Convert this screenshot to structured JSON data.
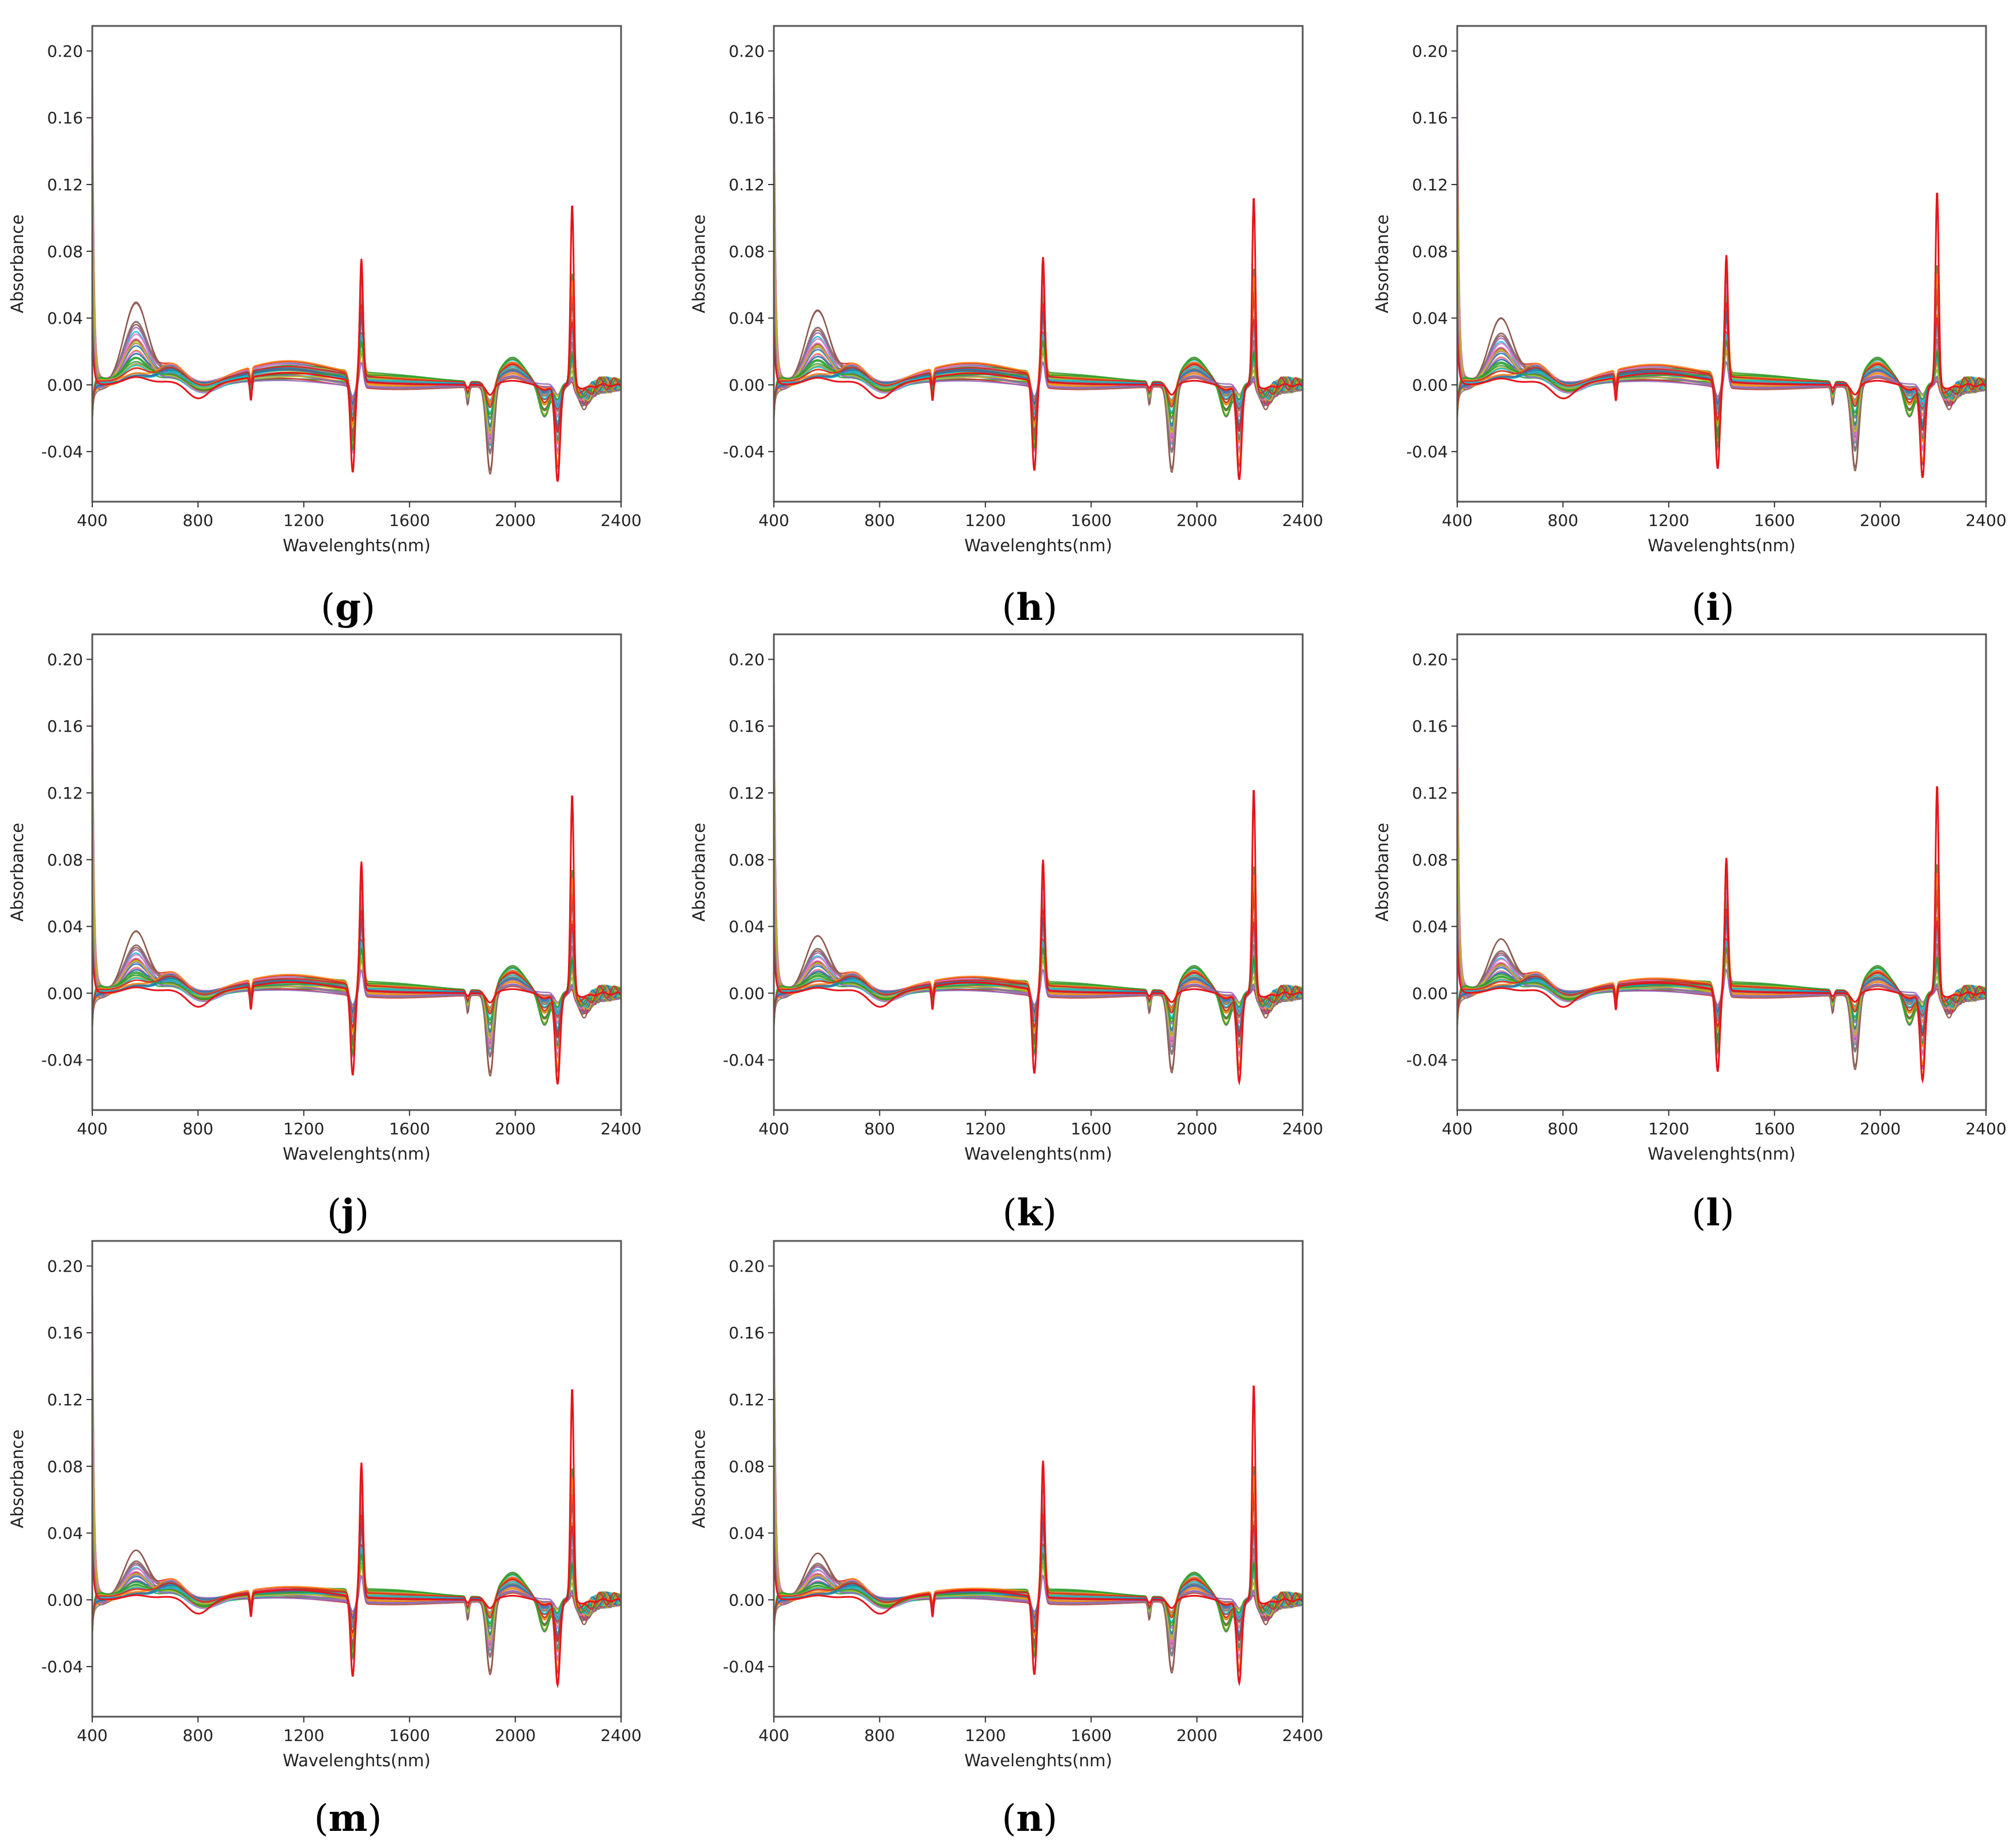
{
  "chart_data": [
    {
      "panel": "g",
      "type": "line",
      "xlabel": "Wavelenghts(nm)",
      "ylabel": "Absorbance",
      "xlim": [
        400,
        2400
      ],
      "ylim": [
        -0.07,
        0.215
      ],
      "xticks": [
        "400",
        "800",
        "1200",
        "1600",
        "2000",
        "2400"
      ],
      "yticks": [
        "-0.04",
        "0.00",
        "0.04",
        "0.08",
        "0.12",
        "0.16",
        "0.20"
      ],
      "grid": false,
      "legend": "none",
      "series_count_visible": "many",
      "features": {
        "peak_400": 0.2,
        "vis_peak_570": 0.053,
        "peak_1420": 0.063,
        "dip_1390": -0.048,
        "dip_1900": -0.057,
        "dip_2150": -0.05,
        "peak_2220": 0.097,
        "baseline_1200": 0.012
      }
    },
    {
      "panel": "h",
      "type": "line",
      "xlabel": "Wavelenghts(nm)",
      "ylabel": "Absorbance",
      "xlim": [
        400,
        2400
      ],
      "ylim": [
        -0.07,
        0.215
      ],
      "xticks": [
        "400",
        "800",
        "1200",
        "1600",
        "2000",
        "2400"
      ],
      "yticks": [
        "-0.04",
        "0.00",
        "0.04",
        "0.08",
        "0.12",
        "0.16",
        "0.20"
      ],
      "grid": false,
      "legend": "none",
      "series_count_visible": "many",
      "features": {
        "peak_400": 0.2,
        "vis_peak_570": 0.048,
        "peak_1420": 0.064,
        "dip_1390": -0.047,
        "dip_1900": -0.056,
        "dip_2150": -0.049,
        "peak_2220": 0.101,
        "baseline_1200": 0.011
      }
    },
    {
      "panel": "i",
      "type": "line",
      "xlabel": "Wavelenghts(nm)",
      "ylabel": "Absorbance",
      "xlim": [
        400,
        2400
      ],
      "ylim": [
        -0.07,
        0.215
      ],
      "xticks": [
        "400",
        "800",
        "1200",
        "1600",
        "2000",
        "2400"
      ],
      "yticks": [
        "-0.04",
        "0.00",
        "0.04",
        "0.08",
        "0.12",
        "0.16",
        "0.20"
      ],
      "grid": false,
      "legend": "none",
      "series_count_visible": "many",
      "features": {
        "peak_400": 0.2,
        "vis_peak_570": 0.043,
        "peak_1420": 0.065,
        "dip_1390": -0.046,
        "dip_1900": -0.055,
        "dip_2150": -0.048,
        "peak_2220": 0.104,
        "baseline_1200": 0.01
      }
    },
    {
      "panel": "j",
      "type": "line",
      "xlabel": "Wavelenghts(nm)",
      "ylabel": "Absorbance",
      "xlim": [
        400,
        2400
      ],
      "ylim": [
        -0.07,
        0.215
      ],
      "xticks": [
        "400",
        "800",
        "1200",
        "1600",
        "2000",
        "2400"
      ],
      "yticks": [
        "-0.04",
        "0.00",
        "0.04",
        "0.08",
        "0.12",
        "0.16",
        "0.20"
      ],
      "grid": false,
      "legend": "none",
      "series_count_visible": "many",
      "features": {
        "peak_400": 0.2,
        "vis_peak_570": 0.04,
        "peak_1420": 0.066,
        "dip_1390": -0.045,
        "dip_1900": -0.053,
        "dip_2150": -0.047,
        "peak_2220": 0.107,
        "baseline_1200": 0.009
      }
    },
    {
      "panel": "k",
      "type": "line",
      "xlabel": "Wavelenghts(nm)",
      "ylabel": "Absorbance",
      "xlim": [
        400,
        2400
      ],
      "ylim": [
        -0.07,
        0.215
      ],
      "xticks": [
        "400",
        "800",
        "1200",
        "1600",
        "2000",
        "2400"
      ],
      "yticks": [
        "-0.04",
        "0.00",
        "0.04",
        "0.08",
        "0.12",
        "0.16",
        "0.20"
      ],
      "grid": false,
      "legend": "none",
      "series_count_visible": "many",
      "features": {
        "peak_400": 0.2,
        "vis_peak_570": 0.037,
        "peak_1420": 0.067,
        "dip_1390": -0.044,
        "dip_1900": -0.051,
        "dip_2150": -0.046,
        "peak_2220": 0.11,
        "baseline_1200": 0.008
      }
    },
    {
      "panel": "l",
      "type": "line",
      "xlabel": "Wavelenghts(nm)",
      "ylabel": "Absorbance",
      "xlim": [
        400,
        2400
      ],
      "ylim": [
        -0.07,
        0.215
      ],
      "xticks": [
        "400",
        "800",
        "1200",
        "1600",
        "2000",
        "2400"
      ],
      "yticks": [
        "-0.04",
        "0.00",
        "0.04",
        "0.08",
        "0.12",
        "0.16",
        "0.20"
      ],
      "grid": false,
      "legend": "none",
      "series_count_visible": "many",
      "features": {
        "peak_400": 0.2,
        "vis_peak_570": 0.035,
        "peak_1420": 0.068,
        "dip_1390": -0.043,
        "dip_1900": -0.049,
        "dip_2150": -0.045,
        "peak_2220": 0.112,
        "baseline_1200": 0.007
      }
    },
    {
      "panel": "m",
      "type": "line",
      "xlabel": "Wavelenghts(nm)",
      "ylabel": "Absorbance",
      "xlim": [
        400,
        2400
      ],
      "ylim": [
        -0.07,
        0.215
      ],
      "xticks": [
        "400",
        "800",
        "1200",
        "1600",
        "2000",
        "2400"
      ],
      "yticks": [
        "-0.04",
        "0.00",
        "0.04",
        "0.08",
        "0.12",
        "0.16",
        "0.20"
      ],
      "grid": false,
      "legend": "none",
      "series_count_visible": "many",
      "features": {
        "peak_400": 0.2,
        "vis_peak_570": 0.032,
        "peak_1420": 0.069,
        "dip_1390": -0.042,
        "dip_1900": -0.048,
        "dip_2150": -0.044,
        "peak_2220": 0.114,
        "baseline_1200": 0.006
      }
    },
    {
      "panel": "n",
      "type": "line",
      "xlabel": "Wavelenghts(nm)",
      "ylabel": "Absorbance",
      "xlim": [
        400,
        2400
      ],
      "ylim": [
        -0.07,
        0.215
      ],
      "xticks": [
        "400",
        "800",
        "1200",
        "1600",
        "2000",
        "2400"
      ],
      "yticks": [
        "-0.04",
        "0.00",
        "0.04",
        "0.08",
        "0.12",
        "0.16",
        "0.20"
      ],
      "grid": false,
      "legend": "none",
      "series_count_visible": "many",
      "features": {
        "peak_400": 0.2,
        "vis_peak_570": 0.03,
        "peak_1420": 0.07,
        "dip_1390": -0.041,
        "dip_1900": -0.047,
        "dip_2150": -0.043,
        "peak_2220": 0.116,
        "baseline_1200": 0.005
      }
    }
  ],
  "captions": [
    "(g)",
    "(h)",
    "(i)",
    "(j)",
    "(k)",
    "(l)",
    "(m)",
    "(n)"
  ],
  "series_colors": [
    "#1f77b4",
    "#ff7f0e",
    "#2ca02c",
    "#d62728",
    "#9467bd",
    "#8c564b",
    "#e377c2",
    "#7f7f7f",
    "#bcbd22",
    "#17becf"
  ]
}
